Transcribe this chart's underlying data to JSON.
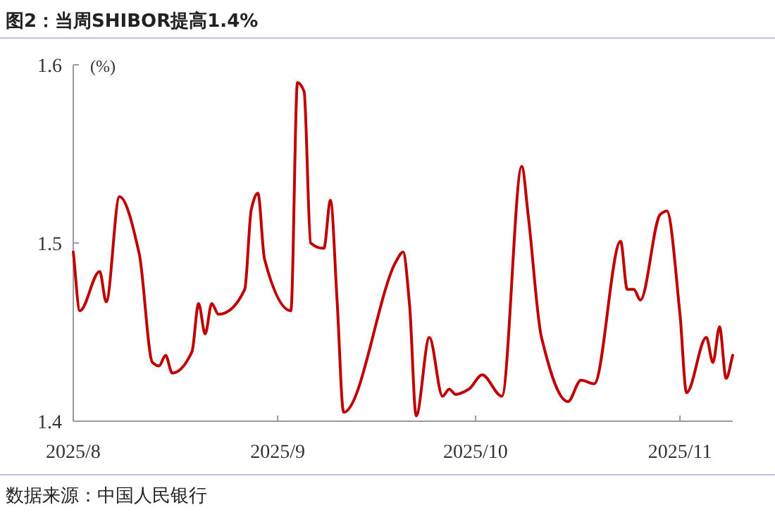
{
  "chart_data": {
    "type": "line",
    "title": "图2：当周SHIBOR提高1.4%",
    "ylabel": "(%)",
    "annotations": [
      "数据来源：中国人民银行"
    ],
    "x": [
      "2025-08-01",
      "2025-08-02",
      "2025-08-05",
      "2025-08-06",
      "2025-08-08",
      "2025-08-11",
      "2025-08-13",
      "2025-08-14",
      "2025-08-15",
      "2025-08-16",
      "2025-08-19",
      "2025-08-20",
      "2025-08-21",
      "2025-08-22",
      "2025-08-23",
      "2025-08-27",
      "2025-08-28",
      "2025-08-29",
      "2025-08-30",
      "2025-09-03",
      "2025-09-04",
      "2025-09-05",
      "2025-09-06",
      "2025-09-08",
      "2025-09-09",
      "2025-09-10",
      "2025-09-11",
      "2025-09-19",
      "2025-09-20",
      "2025-09-21",
      "2025-09-22",
      "2025-09-24",
      "2025-09-26",
      "2025-09-27",
      "2025-09-28",
      "2025-09-30",
      "2025-10-02",
      "2025-10-05",
      "2025-10-08",
      "2025-10-09",
      "2025-10-11",
      "2025-10-15",
      "2025-10-17",
      "2025-10-19",
      "2025-10-23",
      "2025-10-24",
      "2025-10-25",
      "2025-10-26",
      "2025-10-29",
      "2025-10-30",
      "2025-11-01",
      "2025-11-02",
      "2025-11-05",
      "2025-11-06",
      "2025-11-07",
      "2025-11-08",
      "2025-11-09"
    ],
    "series": [
      {
        "color": "#c00000",
        "values": [
          1.495,
          1.462,
          1.484,
          1.467,
          1.526,
          1.494,
          1.433,
          1.431,
          1.437,
          1.427,
          1.439,
          1.466,
          1.449,
          1.466,
          1.46,
          1.474,
          1.519,
          1.528,
          1.491,
          1.462,
          1.59,
          1.585,
          1.5,
          1.497,
          1.524,
          1.468,
          1.405,
          1.49,
          1.495,
          1.465,
          1.403,
          1.447,
          1.414,
          1.418,
          1.415,
          1.418,
          1.426,
          1.414,
          1.543,
          1.515,
          1.447,
          1.411,
          1.423,
          1.421,
          1.501,
          1.474,
          1.474,
          1.468,
          1.516,
          1.518,
          1.46,
          1.416,
          1.447,
          1.433,
          1.453,
          1.424,
          1.437
        ]
      }
    ],
    "xlim": [
      "2025-08-01",
      "2025-11-09"
    ],
    "xticks": [
      {
        "value": "2025-08-01",
        "label": "2025/8"
      },
      {
        "value": "2025-09-01",
        "label": "2025/9"
      },
      {
        "value": "2025-10-01",
        "label": "2025/10"
      },
      {
        "value": "2025-11-01",
        "label": "2025/11"
      }
    ],
    "ylim": [
      1.4,
      1.6
    ],
    "yticks": [
      1.4,
      1.5,
      1.6
    ],
    "line_style": "solid"
  }
}
